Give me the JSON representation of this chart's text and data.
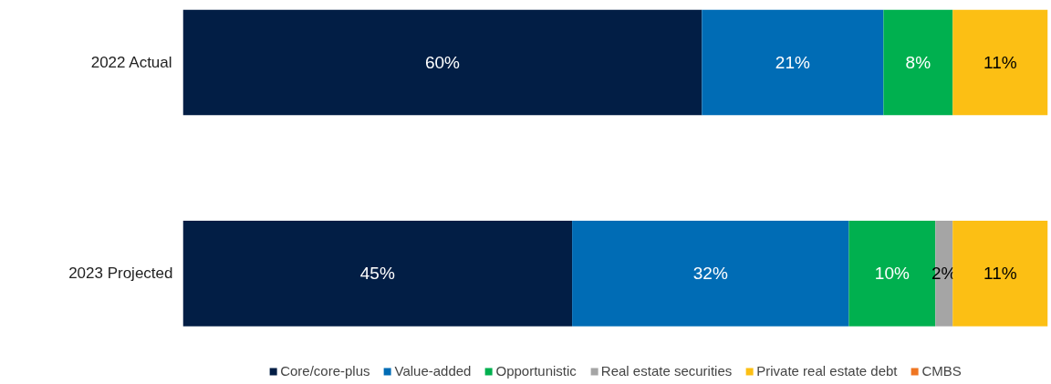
{
  "chart_data": {
    "type": "bar",
    "orientation": "horizontal",
    "stacked": true,
    "categories": [
      "2022 Actual",
      "2023 Projected"
    ],
    "xlim": [
      0,
      100
    ],
    "tick_labels": "y",
    "grid": false,
    "legend": "bottom",
    "series": [
      {
        "name": "Core/core-plus",
        "color": "#021e45",
        "values": [
          60,
          45
        ],
        "value_labels": [
          "60%",
          "45%"
        ]
      },
      {
        "name": "Value-added",
        "color": "#006cb5",
        "values": [
          21,
          32
        ],
        "value_labels": [
          "21%",
          "32%"
        ]
      },
      {
        "name": "Opportunistic",
        "color": "#00b04f",
        "values": [
          8,
          10
        ],
        "value_labels": [
          "8%",
          "10%"
        ]
      },
      {
        "name": "Real estate securities",
        "color": "#a5a5a5",
        "values": [
          0,
          2
        ],
        "value_labels": [
          null,
          "2%"
        ]
      },
      {
        "name": "Private real estate debt",
        "color": "#fcbf14",
        "values": [
          11,
          11
        ],
        "value_labels": [
          "11%",
          "11%"
        ]
      },
      {
        "name": "CMBS",
        "color": "#ef7622",
        "values": [
          0,
          0
        ],
        "value_labels": [
          null,
          null
        ]
      }
    ]
  }
}
